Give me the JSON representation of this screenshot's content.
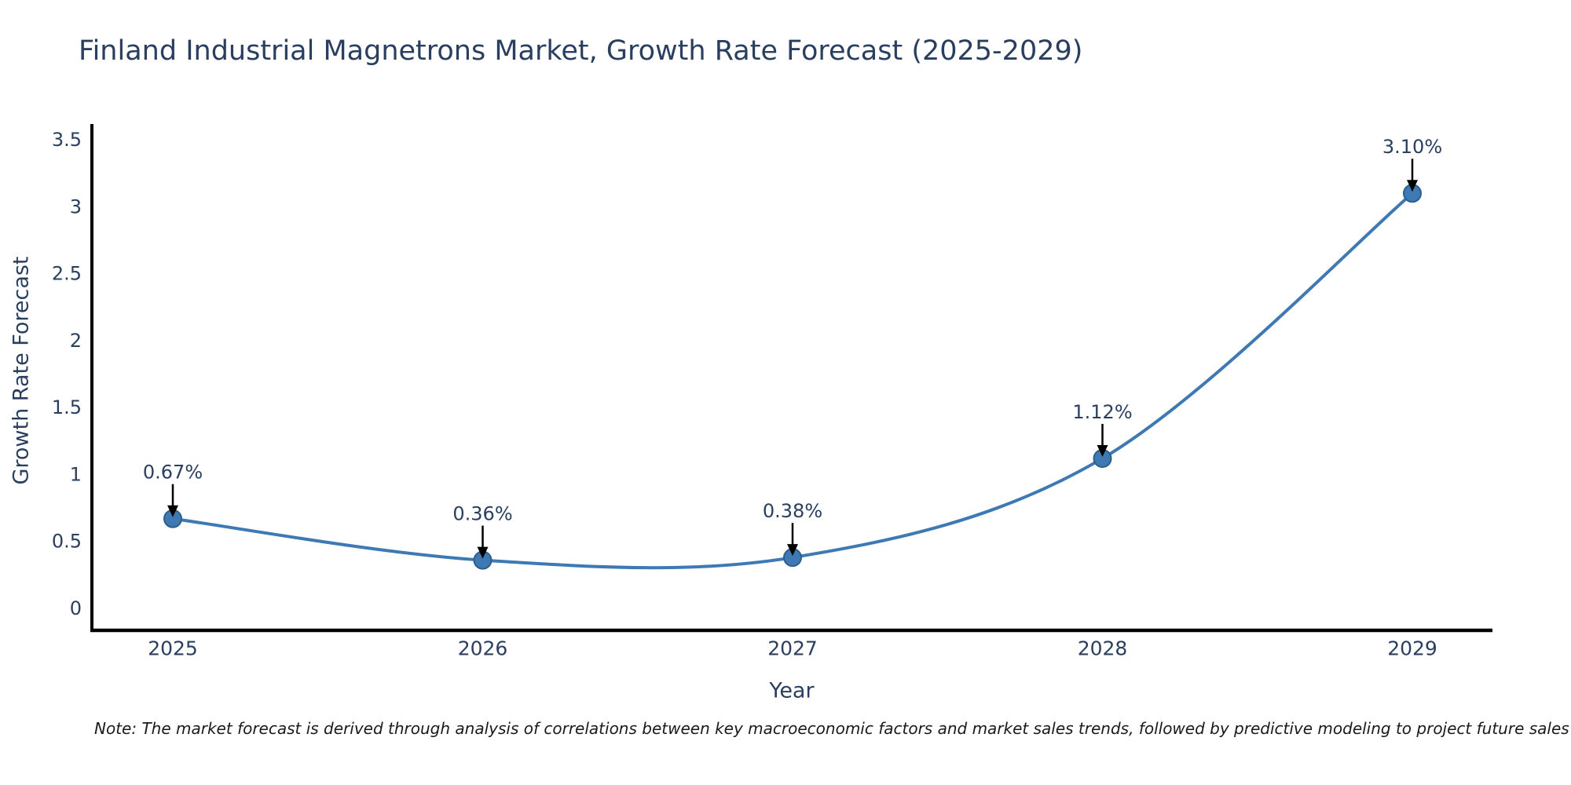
{
  "chart_data": {
    "type": "line",
    "title": "Finland Industrial Magnetrons Market, Growth Rate Forecast (2025-2029)",
    "xlabel": "Year",
    "ylabel": "Growth Rate Forecast",
    "categories": [
      "2025",
      "2026",
      "2027",
      "2028",
      "2029"
    ],
    "series": [
      {
        "name": "Growth Rate Forecast",
        "values": [
          0.67,
          0.36,
          0.38,
          1.12,
          3.1
        ],
        "point_labels": [
          "0.67%",
          "0.36%",
          "0.38%",
          "1.12%",
          "3.10%"
        ]
      }
    ],
    "ylim": [
      0,
      3.5
    ],
    "ytick_labels": [
      "0",
      "0.5",
      "1",
      "1.5",
      "2",
      "2.5",
      "3",
      "3.5"
    ],
    "ytick_values": [
      0,
      0.5,
      1,
      1.5,
      2,
      2.5,
      3,
      3.5
    ],
    "grid": false,
    "legend": "none",
    "curve": "spline",
    "annotation_style": "label-above-with-down-arrow",
    "colors": {
      "line": "#3e79b4",
      "marker_fill": "#3e79b4",
      "marker_edge": "#2c5f8a",
      "axis": "#000000",
      "tick_text": "#2a3f5f",
      "annotation_text": "#2a3f5f",
      "annotation_arrow": "#000000",
      "background": "#ffffff"
    }
  },
  "note": "Note: The market forecast is derived through analysis of correlations between key macroeconomic factors and market sales trends, followed by predictive modeling to project future sales"
}
